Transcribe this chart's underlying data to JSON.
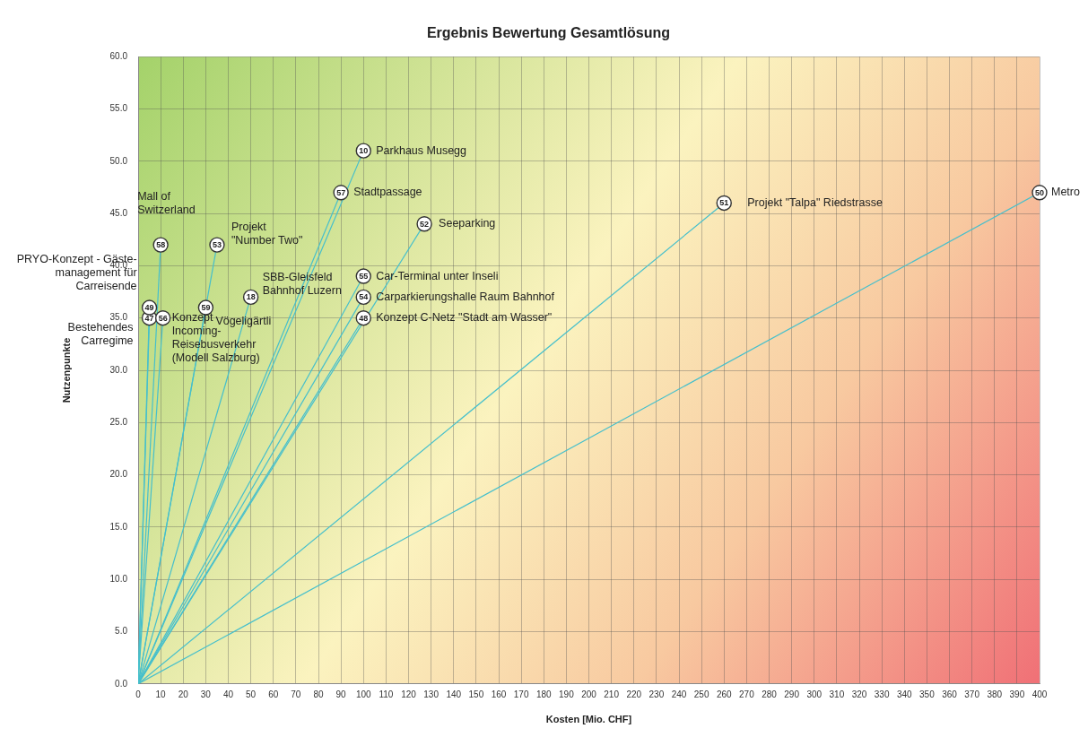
{
  "chart_data": {
    "type": "line",
    "title": "Ergebnis Bewertung Gesamtlösung",
    "xlabel": "Kosten [Mio. CHF]",
    "ylabel": "Nutzenpunkte",
    "xlim": [
      0,
      400
    ],
    "xticks": [
      0,
      10,
      20,
      30,
      40,
      50,
      60,
      70,
      80,
      90,
      100,
      110,
      120,
      130,
      140,
      150,
      160,
      170,
      180,
      190,
      200,
      210,
      220,
      230,
      240,
      250,
      260,
      270,
      280,
      290,
      300,
      310,
      320,
      330,
      340,
      350,
      360,
      370,
      380,
      390,
      400
    ],
    "ylim": [
      0,
      60
    ],
    "yticks": [
      {
        "value": 0,
        "label": "0.0"
      },
      {
        "value": 5,
        "label": "5.0"
      },
      {
        "value": 10,
        "label": "10.0"
      },
      {
        "value": 15,
        "label": "15.0"
      },
      {
        "value": 20,
        "label": "20.0"
      },
      {
        "value": 25,
        "label": "25.0"
      },
      {
        "value": 30,
        "label": "30.0"
      },
      {
        "value": 35,
        "label": "35.0"
      },
      {
        "value": 40,
        "label": "40.0"
      },
      {
        "value": 45,
        "label": "45.0"
      },
      {
        "value": 50,
        "label": "50.0"
      },
      {
        "value": 55,
        "label": "55.0"
      },
      {
        "value": 60,
        "label": "60.0"
      }
    ],
    "grid": true,
    "legend": false,
    "line_style": "solid",
    "series": [
      {
        "name": "Parkhaus Musegg",
        "color": "#45bfcc",
        "x": [
          0,
          100
        ],
        "values": [
          0,
          51
        ]
      },
      {
        "name": "Stadtpassage",
        "color": "#45bfcc",
        "x": [
          0,
          90
        ],
        "values": [
          0,
          47
        ]
      },
      {
        "name": "Seeparking",
        "color": "#45bfcc",
        "x": [
          0,
          127
        ],
        "values": [
          0,
          44
        ]
      },
      {
        "name": "Projekt \"Talpa\" Riedstrasse",
        "color": "#45bfcc",
        "x": [
          0,
          260
        ],
        "values": [
          0,
          46
        ]
      },
      {
        "name": "Metro",
        "color": "#45bfcc",
        "x": [
          0,
          400
        ],
        "values": [
          0,
          47
        ]
      },
      {
        "name": "Mall of\nSwitzerland",
        "color": "#45bfcc",
        "x": [
          0,
          10
        ],
        "values": [
          0,
          42
        ]
      },
      {
        "name": "Projekt\n\"Number Two\"",
        "color": "#45bfcc",
        "x": [
          0,
          35
        ],
        "values": [
          0,
          42
        ]
      },
      {
        "name": "Car-Terminal unter Inseli",
        "color": "#45bfcc",
        "x": [
          0,
          100
        ],
        "values": [
          0,
          39
        ]
      },
      {
        "name": "Carparkierungshalle Raum Bahnhof",
        "color": "#45bfcc",
        "x": [
          0,
          100
        ],
        "values": [
          0,
          37
        ]
      },
      {
        "name": "Konzept C-Netz \"Stadt am Wasser\"",
        "color": "#45bfcc",
        "x": [
          0,
          100
        ],
        "values": [
          0,
          35
        ]
      },
      {
        "name": "SBB-Gleisfeld\nBahnhof Luzern",
        "color": "#45bfcc",
        "x": [
          0,
          50
        ],
        "values": [
          0,
          37
        ]
      },
      {
        "name": "Vögeligärtli",
        "color": "#45bfcc",
        "x": [
          0,
          30
        ],
        "values": [
          0,
          36
        ]
      },
      {
        "name": "PRYO-Konzept - Gäste-\nmanagement für\nCarreisende",
        "color": "#45bfcc",
        "x": [
          0,
          5
        ],
        "values": [
          0,
          36
        ]
      },
      {
        "name": "Bestehendes\nCarregime",
        "color": "#45bfcc",
        "x": [
          0,
          5
        ],
        "values": [
          0,
          35
        ]
      },
      {
        "name": "Konzept\nIncoming-\nReisebusverkehr\n(Modell Salzburg)",
        "color": "#45bfcc",
        "x": [
          0,
          11
        ],
        "values": [
          0,
          35
        ]
      }
    ],
    "annotations": [
      {
        "text": "10",
        "x": 100,
        "y": 51
      },
      {
        "text": "57",
        "x": 90,
        "y": 47
      },
      {
        "text": "52",
        "x": 127,
        "y": 44
      },
      {
        "text": "51",
        "x": 260,
        "y": 46
      },
      {
        "text": "50",
        "x": 400,
        "y": 47
      },
      {
        "text": "58",
        "x": 10,
        "y": 42
      },
      {
        "text": "53",
        "x": 35,
        "y": 42
      },
      {
        "text": "55",
        "x": 100,
        "y": 39
      },
      {
        "text": "54",
        "x": 100,
        "y": 37
      },
      {
        "text": "48",
        "x": 100,
        "y": 35
      },
      {
        "text": "18",
        "x": 50,
        "y": 37
      },
      {
        "text": "59",
        "x": 30,
        "y": 36
      },
      {
        "text": "47",
        "x": 5,
        "y": 35
      },
      {
        "text": "56",
        "x": 11,
        "y": 35
      },
      {
        "text": "49",
        "x": 5,
        "y": 36
      }
    ]
  }
}
